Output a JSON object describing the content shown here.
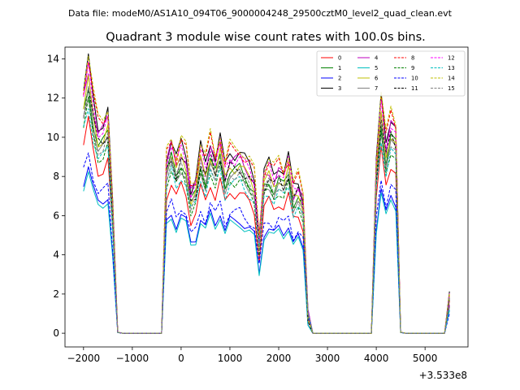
{
  "figure": {
    "suptitle": "Data file: modeM0/AS1A10_094T06_9000004248_29500cztM0_level2_quad_clean.evt",
    "title": "Quadrant 3 module wise count rates with 100.0s bins.",
    "x_offset_label": "+3.533e8"
  },
  "chart_data": {
    "type": "line",
    "title": "Quadrant 3 module wise count rates with 100.0s bins.",
    "xlabel": "",
    "ylabel": "",
    "x_offset": 353300000,
    "xlim": [
      -2380,
      5880
    ],
    "ylim": [
      -0.7,
      14.6
    ],
    "xticks": [
      -2000,
      -1000,
      0,
      1000,
      2000,
      3000,
      4000,
      5000
    ],
    "xtick_labels": [
      "−2000",
      "−1000",
      "0",
      "1000",
      "2000",
      "3000",
      "4000",
      "5000"
    ],
    "yticks": [
      0,
      2,
      4,
      6,
      8,
      10,
      12,
      14
    ],
    "ytick_labels": [
      "0",
      "2",
      "4",
      "6",
      "8",
      "10",
      "12",
      "14"
    ],
    "legend_position": "top-right",
    "x": [
      -2000,
      -1900,
      -1800,
      -1700,
      -1600,
      -1500,
      -1400,
      -1300,
      -1200,
      -1100,
      -1000,
      -900,
      -800,
      -700,
      -600,
      -500,
      -400,
      -300,
      -200,
      -100,
      0,
      100,
      200,
      300,
      400,
      500,
      600,
      700,
      800,
      900,
      1000,
      1100,
      1200,
      1300,
      1400,
      1500,
      1600,
      1700,
      1800,
      1900,
      2000,
      2100,
      2200,
      2300,
      2400,
      2500,
      2600,
      2700,
      2800,
      2900,
      3000,
      3100,
      3200,
      3300,
      3400,
      3500,
      3600,
      3700,
      3800,
      3900,
      4000,
      4100,
      4200,
      4300,
      4400,
      4500,
      4600,
      4700,
      4800,
      4900,
      5000,
      5100,
      5200,
      5300,
      5400,
      5500
    ],
    "base_profile": [
      12.0,
      13.5,
      11.6,
      10.3,
      10.4,
      11.0,
      6.2,
      0.05,
      0,
      0,
      0,
      0,
      0,
      0,
      0,
      0,
      0,
      8.8,
      9.6,
      8.6,
      9.4,
      8.9,
      7.2,
      7.6,
      9.2,
      8.4,
      9.6,
      8.7,
      9.7,
      8.2,
      9.0,
      8.9,
      9.0,
      8.6,
      8.3,
      7.8,
      4.8,
      8.0,
      8.4,
      7.9,
      8.4,
      8.0,
      8.7,
      7.2,
      7.6,
      6.8,
      1.0,
      0,
      0,
      0,
      0,
      0,
      0,
      0,
      0,
      0,
      0,
      0,
      0,
      0,
      8.5,
      11.6,
      9.5,
      10.8,
      10.3,
      0.05,
      0,
      0,
      0,
      0,
      0,
      0,
      0,
      0,
      0,
      1.8
    ],
    "series": [
      {
        "name": "0",
        "color": "#ff0000",
        "dashed": false,
        "scale": 0.8
      },
      {
        "name": "1",
        "color": "#008000",
        "dashed": false,
        "scale": 0.93
      },
      {
        "name": "2",
        "color": "#0000ff",
        "dashed": false,
        "scale": 0.64
      },
      {
        "name": "3",
        "color": "#000000",
        "dashed": false,
        "scale": 1.03
      },
      {
        "name": "4",
        "color": "#bf00bf",
        "dashed": false,
        "scale": 0.99
      },
      {
        "name": "5",
        "color": "#00bfbf",
        "dashed": false,
        "scale": 0.62
      },
      {
        "name": "6",
        "color": "#bfbf00",
        "dashed": false,
        "scale": 0.95
      },
      {
        "name": "7",
        "color": "#808080",
        "dashed": false,
        "scale": 0.9
      },
      {
        "name": "8",
        "color": "#ff0000",
        "dashed": true,
        "scale": 1.04
      },
      {
        "name": "9",
        "color": "#008000",
        "dashed": true,
        "scale": 0.87
      },
      {
        "name": "10",
        "color": "#0000ff",
        "dashed": true,
        "scale": 0.69
      },
      {
        "name": "11",
        "color": "#000000",
        "dashed": true,
        "scale": 0.94
      },
      {
        "name": "12",
        "color": "#ff00ff",
        "dashed": true,
        "scale": 1.0
      },
      {
        "name": "13",
        "color": "#00bfbf",
        "dashed": true,
        "scale": 0.86
      },
      {
        "name": "14",
        "color": "#bfbf00",
        "dashed": true,
        "scale": 1.06
      },
      {
        "name": "15",
        "color": "#808080",
        "dashed": true,
        "scale": 0.91
      }
    ]
  }
}
